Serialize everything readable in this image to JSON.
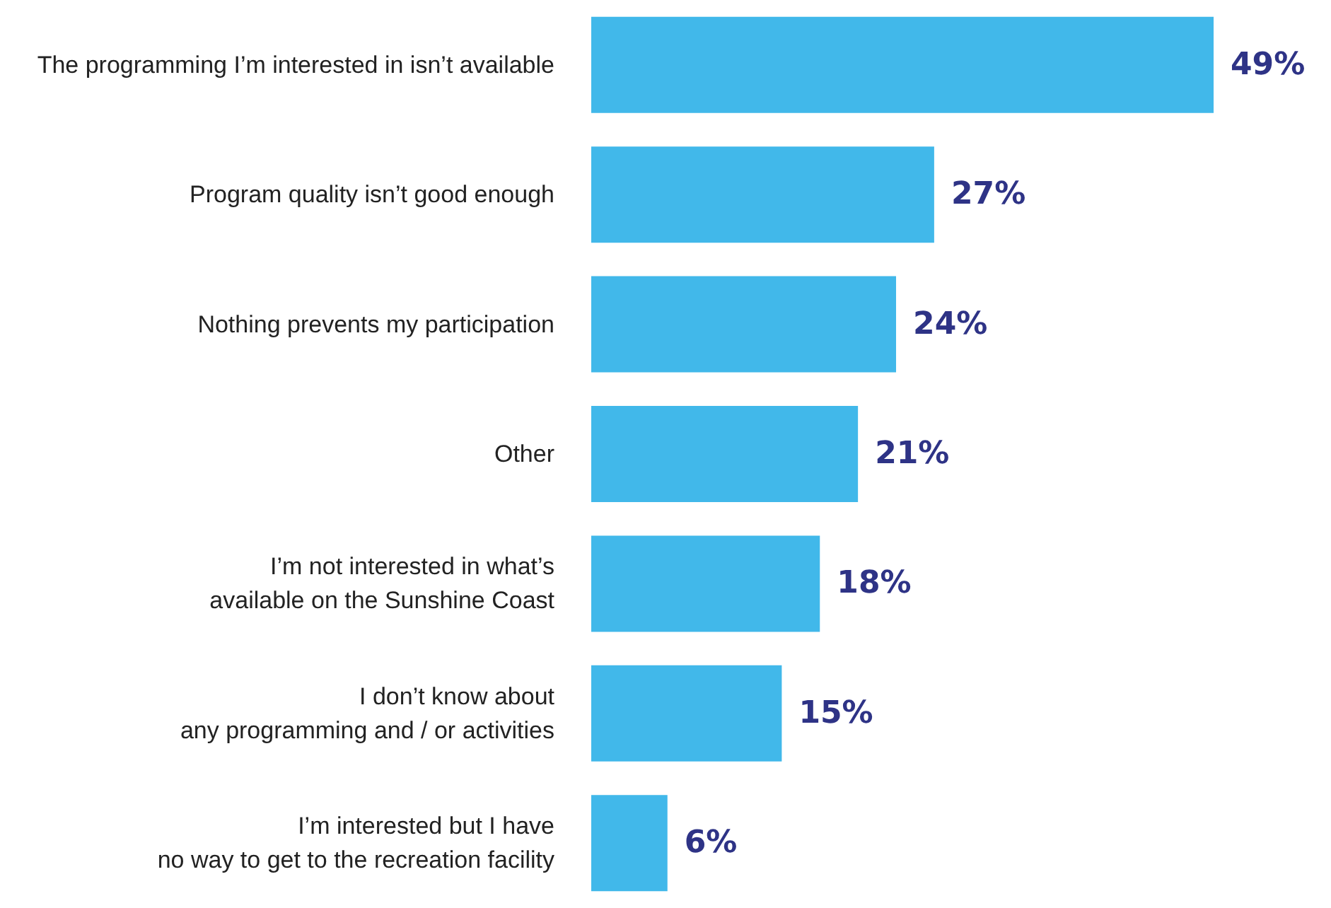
{
  "chart_data": {
    "type": "bar",
    "orientation": "horizontal",
    "categories": [
      "The programming I’m interested in isn’t available",
      "Program quality isn’t good enough",
      "Nothing prevents my participation",
      "Other",
      "I’m not interested in what’s\navailable on the Sunshine Coast",
      "I don’t know about\nany programming and / or activities",
      "I’m interested but I have\nno way to get to the recreation facility"
    ],
    "values": [
      49,
      27,
      24,
      21,
      18,
      15,
      6
    ],
    "value_labels": [
      "49%",
      "27%",
      "24%",
      "21%",
      "18%",
      "15%",
      "6%"
    ],
    "color": "#41b8ea"
  }
}
